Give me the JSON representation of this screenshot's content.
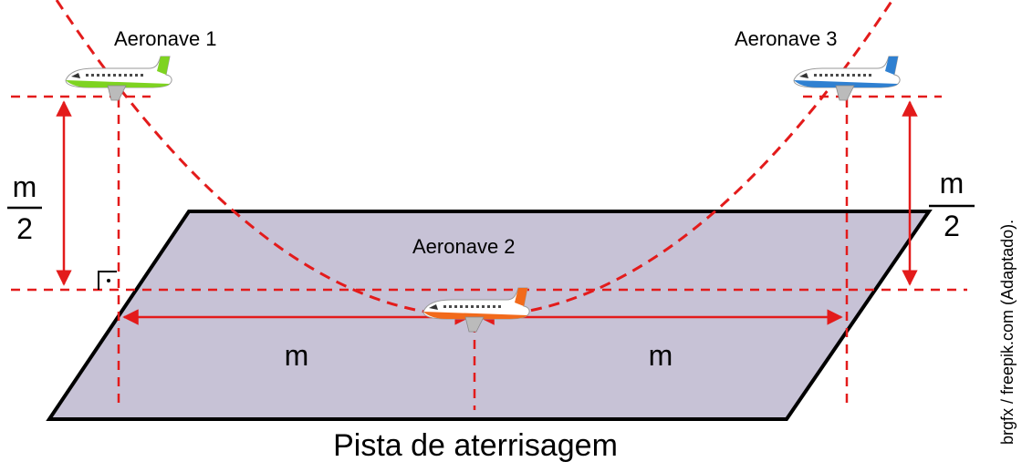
{
  "aircraft": {
    "plane1": {
      "label": "Aeronave 1",
      "color": "#7ed321"
    },
    "plane2": {
      "label": "Aeronave 2",
      "color": "#f26a1b"
    },
    "plane3": {
      "label": "Aeronave 3",
      "color": "#2f80d1"
    }
  },
  "measures": {
    "half_left": {
      "numerator": "m",
      "denominator": "2"
    },
    "half_right": {
      "numerator": "m",
      "denominator": "2"
    },
    "span_left": "m",
    "span_right": "m"
  },
  "runway_label": "Pista de aterrisagem",
  "credit": "brgfx / freepik.com (Adaptado).",
  "colors": {
    "guide": "#e31b1b",
    "runway_fill": "#c7c2d6",
    "runway_stroke": "#000000"
  }
}
